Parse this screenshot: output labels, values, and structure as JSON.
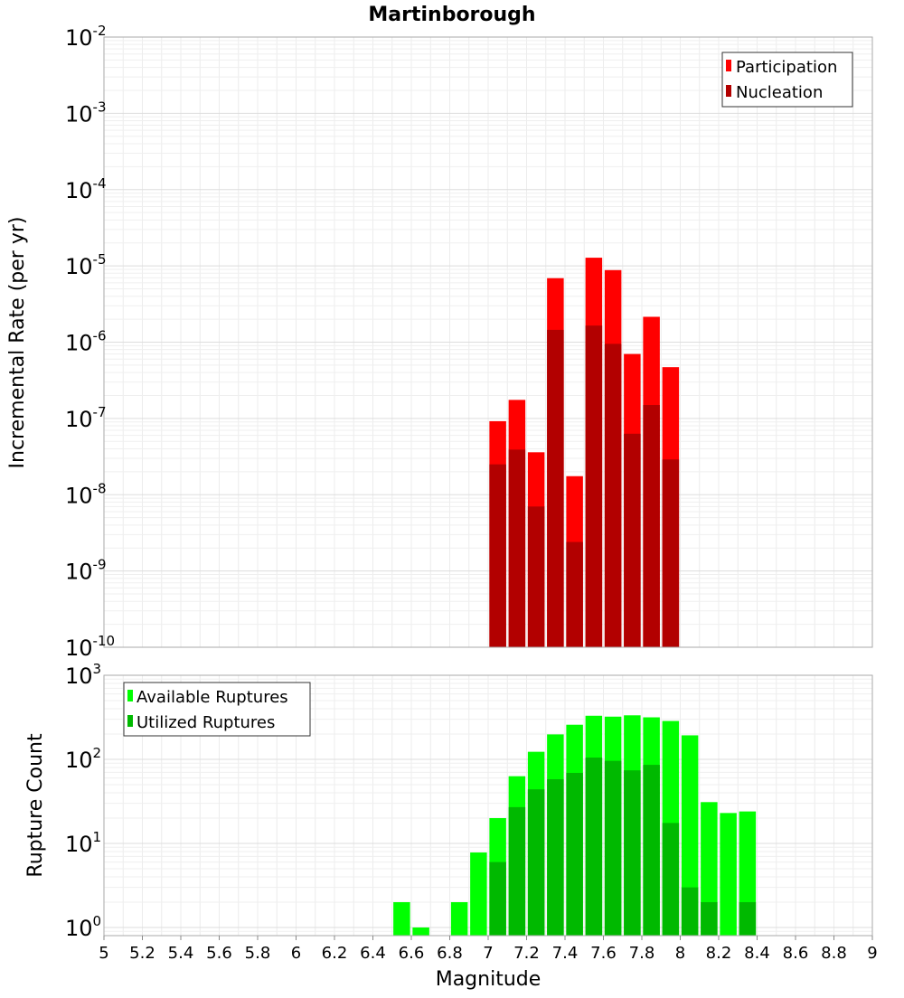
{
  "chart_data": [
    {
      "type": "bar",
      "title": "Martinborough",
      "ylabel": "Incremental Rate (per yr)",
      "xlabel": "",
      "yscale": "log",
      "xlim": [
        5,
        9
      ],
      "ylim": [
        1e-10,
        0.01
      ],
      "y_ticks": [
        {
          "base": "10",
          "exp": "-2"
        },
        {
          "base": "10",
          "exp": "-3"
        },
        {
          "base": "10",
          "exp": "-4"
        },
        {
          "base": "10",
          "exp": "-5"
        },
        {
          "base": "10",
          "exp": "-6"
        },
        {
          "base": "10",
          "exp": "-7"
        },
        {
          "base": "10",
          "exp": "-8"
        },
        {
          "base": "10",
          "exp": "-9"
        },
        {
          "base": "10",
          "exp": "-10"
        }
      ],
      "legend": {
        "position": "top-right",
        "entries": [
          "Participation",
          "Nucleation"
        ]
      },
      "x": [
        7.05,
        7.15,
        7.25,
        7.35,
        7.45,
        7.55,
        7.65,
        7.75,
        7.85,
        7.95
      ],
      "series": [
        {
          "name": "Participation",
          "color": "#ff0000",
          "values": [
            9.2e-08,
            1.75e-07,
            3.6e-08,
            6.9e-06,
            1.75e-08,
            1.28e-05,
            8.8e-06,
            7e-07,
            2.15e-06,
            4.7e-07
          ]
        },
        {
          "name": "Nucleation",
          "color": "#b20000",
          "values": [
            2.5e-08,
            3.9e-08,
            7e-09,
            1.45e-06,
            2.4e-09,
            1.65e-06,
            9.5e-07,
            6.3e-08,
            1.5e-07,
            2.9e-08
          ]
        }
      ]
    },
    {
      "type": "bar",
      "title": "",
      "ylabel": "Rupture Count",
      "xlabel": "Magnitude",
      "yscale": "log",
      "xlim": [
        5,
        9
      ],
      "ylim": [
        0.8,
        1000
      ],
      "y_ticks": [
        {
          "base": "10",
          "exp": "3",
          "value": 1000
        },
        {
          "base": "10",
          "exp": "2",
          "value": 100
        },
        {
          "base": "10",
          "exp": "1",
          "value": 10
        },
        {
          "base": "10",
          "exp": "0",
          "value": 1
        }
      ],
      "x_ticks": [
        "5",
        "5.2",
        "5.4",
        "5.6",
        "5.8",
        "6",
        "6.2",
        "6.4",
        "6.6",
        "6.8",
        "7",
        "7.2",
        "7.4",
        "7.6",
        "7.8",
        "8",
        "8.2",
        "8.4",
        "8.6",
        "8.8",
        "9"
      ],
      "legend": {
        "position": "top-left",
        "entries": [
          "Available Ruptures",
          "Utilized Ruptures"
        ]
      },
      "x": [
        6.55,
        6.65,
        6.75,
        6.85,
        6.95,
        7.05,
        7.15,
        7.25,
        7.35,
        7.45,
        7.55,
        7.65,
        7.75,
        7.85,
        7.95,
        8.05,
        8.15,
        8.25,
        8.35
      ],
      "series": [
        {
          "name": "Available Ruptures",
          "color": "#00ff00",
          "values": [
            2,
            1,
            0,
            2,
            7.8,
            20,
            63,
            123,
            198,
            258,
            330,
            322,
            334,
            316,
            286,
            193,
            31,
            23,
            24
          ]
        },
        {
          "name": "Utilized Ruptures",
          "color": "#00b900",
          "values": [
            0,
            0,
            0,
            0,
            0,
            6,
            27,
            44,
            58,
            69,
            105,
            96,
            74,
            86,
            17.5,
            3,
            2,
            0,
            2
          ]
        }
      ]
    }
  ]
}
